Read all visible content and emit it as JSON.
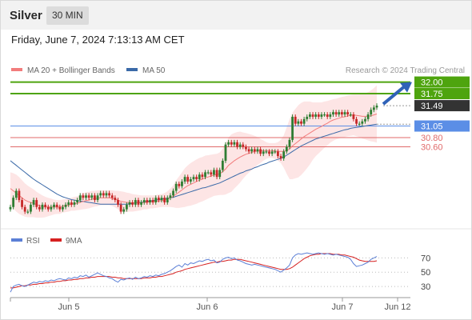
{
  "header": {
    "instrument": "Silver",
    "timeframe": "30 MIN",
    "datetime": "Friday, June 7, 2024 7:13:13 AM CET"
  },
  "colors": {
    "ma20": "#f27c7c",
    "bollinger_fill": "#fde0e0",
    "ma50": "#3b6aa8",
    "resistance": "#4ea40e",
    "pivot": "#5b8ee6",
    "support": "#e06a6a",
    "arrow": "#2f62b8",
    "last_price_bg": "#333333",
    "candle_up": "#2e7d32",
    "candle_down": "#c62828",
    "rsi": "#5b7fd6",
    "rsi_ma": "#d62020"
  },
  "chart_data": [
    {
      "type": "candlestick",
      "legend": [
        {
          "name": "MA 20 + Bollinger Bands",
          "color": "#f27c7c"
        },
        {
          "name": "MA 50",
          "color": "#3b6aa8"
        }
      ],
      "watermark": "Research © 2024 Trading Central",
      "ylim": [
        28.95,
        32.2
      ],
      "x_ticks": [
        "Jun 5",
        "Jun 6",
        "Jun 7",
        "Jun 12"
      ],
      "levels": [
        {
          "label": "32.00",
          "value": 32.0,
          "kind": "resistance"
        },
        {
          "label": "31.75",
          "value": 31.75,
          "kind": "resistance"
        },
        {
          "label": "31.49",
          "value": 31.49,
          "kind": "last"
        },
        {
          "label": "31.05",
          "value": 31.05,
          "kind": "pivot"
        },
        {
          "label": "30.80",
          "value": 30.8,
          "kind": "support"
        },
        {
          "label": "30.60",
          "value": 30.6,
          "kind": "support"
        }
      ],
      "close": [
        29.3,
        29.5,
        29.65,
        29.45,
        29.3,
        29.2,
        29.2,
        29.35,
        29.45,
        29.3,
        29.25,
        29.35,
        29.3,
        29.25,
        29.3,
        29.35,
        29.3,
        29.25,
        29.3,
        29.35,
        29.4,
        29.35,
        29.4,
        29.45,
        29.55,
        29.5,
        29.55,
        29.5,
        29.55,
        29.45,
        29.55,
        29.6,
        29.55,
        29.6,
        29.55,
        29.5,
        29.45,
        29.35,
        29.2,
        29.25,
        29.35,
        29.4,
        29.35,
        29.45,
        29.35,
        29.4,
        29.45,
        29.4,
        29.45,
        29.4,
        29.5,
        29.45,
        29.5,
        29.4,
        29.5,
        29.55,
        29.65,
        29.8,
        29.75,
        29.85,
        29.95,
        29.85,
        29.9,
        29.95,
        29.9,
        30.0,
        29.95,
        30.05,
        30.05,
        30.0,
        30.1,
        29.95,
        30.1,
        30.3,
        30.65,
        30.7,
        30.65,
        30.7,
        30.6,
        30.65,
        30.6,
        30.55,
        30.5,
        30.55,
        30.5,
        30.55,
        30.45,
        30.5,
        30.5,
        30.45,
        30.5,
        30.5,
        30.4,
        30.35,
        30.5,
        30.6,
        30.75,
        31.25,
        31.1,
        31.15,
        31.1,
        31.2,
        31.25,
        31.3,
        31.25,
        31.3,
        31.25,
        31.3,
        31.3,
        31.25,
        31.3,
        31.35,
        31.3,
        31.35,
        31.3,
        31.35,
        31.3,
        31.3,
        31.2,
        31.1,
        31.1,
        31.15,
        31.2,
        31.3,
        31.4,
        31.45,
        31.49
      ],
      "ma20": [
        29.7,
        29.65,
        29.6,
        29.55,
        29.5,
        29.45,
        29.42,
        29.4,
        29.38,
        29.35,
        29.33,
        29.31,
        29.3,
        29.3,
        29.3,
        29.3,
        29.3,
        29.3,
        29.32,
        29.33,
        29.34,
        29.36,
        29.37,
        29.38,
        29.4,
        29.42,
        29.44,
        29.45,
        29.47,
        29.48,
        29.49,
        29.5,
        29.5,
        29.5,
        29.5,
        29.49,
        29.47,
        29.45,
        29.42,
        29.41,
        29.4,
        29.4,
        29.39,
        29.39,
        29.39,
        29.39,
        29.4,
        29.4,
        29.41,
        29.41,
        29.42,
        29.43,
        29.44,
        29.45,
        29.47,
        29.5,
        29.53,
        29.58,
        29.62,
        29.67,
        29.72,
        29.76,
        29.79,
        29.82,
        29.85,
        29.88,
        29.9,
        29.93,
        29.95,
        29.97,
        29.99,
        30.0,
        30.02,
        30.06,
        30.12,
        30.2,
        30.25,
        30.3,
        30.34,
        30.38,
        30.41,
        30.44,
        30.46,
        30.48,
        30.5,
        30.51,
        30.51,
        30.52,
        30.52,
        30.52,
        30.52,
        30.51,
        30.5,
        30.5,
        30.5,
        30.52,
        30.55,
        30.62,
        30.67,
        30.72,
        30.77,
        30.82,
        30.86,
        30.9,
        30.94,
        30.98,
        31.01,
        31.04,
        31.08,
        31.11,
        31.15,
        31.18,
        31.2,
        31.22,
        31.24,
        31.25,
        31.27,
        31.28,
        31.29,
        31.28,
        31.27,
        31.26,
        31.26,
        31.26,
        31.27,
        31.29,
        31.31
      ],
      "ma50": [
        30.3,
        30.25,
        30.2,
        30.15,
        30.1,
        30.05,
        30.0,
        29.95,
        29.9,
        29.86,
        29.82,
        29.78,
        29.74,
        29.7,
        29.66,
        29.62,
        29.58,
        29.55,
        29.52,
        29.5,
        29.48,
        29.46,
        29.45,
        29.44,
        29.43,
        29.42,
        29.41,
        29.4,
        29.39,
        29.38,
        29.37,
        29.36,
        29.36,
        29.36,
        29.36,
        29.36,
        29.36,
        29.36,
        29.36,
        29.36,
        29.36,
        29.37,
        29.38,
        29.39,
        29.4,
        29.4,
        29.41,
        29.42,
        29.43,
        29.44,
        29.45,
        29.46,
        29.47,
        29.48,
        29.49,
        29.5,
        29.51,
        29.53,
        29.55,
        29.57,
        29.59,
        29.61,
        29.63,
        29.65,
        29.67,
        29.69,
        29.71,
        29.72,
        29.74,
        29.76,
        29.78,
        29.8,
        29.82,
        29.85,
        29.88,
        29.91,
        29.94,
        29.97,
        30.0,
        30.03,
        30.05,
        30.08,
        30.1,
        30.12,
        30.15,
        30.17,
        30.2,
        30.22,
        30.24,
        30.27,
        30.29,
        30.31,
        30.33,
        30.35,
        30.38,
        30.42,
        30.46,
        30.5,
        30.54,
        30.58,
        30.62,
        30.65,
        30.68,
        30.71,
        30.74,
        30.77,
        30.79,
        30.81,
        30.83,
        30.85,
        30.87,
        30.89,
        30.91,
        30.93,
        30.95,
        30.97,
        30.98,
        31.0,
        31.01,
        31.02,
        31.03,
        31.04,
        31.05,
        31.06,
        31.07,
        31.08,
        31.09
      ],
      "bb_width": [
        0.35,
        0.38,
        0.4,
        0.4,
        0.38,
        0.36,
        0.34,
        0.32,
        0.3,
        0.28,
        0.26,
        0.24,
        0.22,
        0.2,
        0.18,
        0.16,
        0.15,
        0.15,
        0.14,
        0.14,
        0.14,
        0.14,
        0.15,
        0.15,
        0.16,
        0.17,
        0.18,
        0.18,
        0.18,
        0.17,
        0.17,
        0.16,
        0.16,
        0.16,
        0.16,
        0.17,
        0.18,
        0.2,
        0.22,
        0.22,
        0.21,
        0.2,
        0.19,
        0.18,
        0.17,
        0.16,
        0.15,
        0.15,
        0.14,
        0.14,
        0.14,
        0.14,
        0.14,
        0.15,
        0.17,
        0.2,
        0.24,
        0.3,
        0.34,
        0.38,
        0.42,
        0.44,
        0.46,
        0.47,
        0.48,
        0.48,
        0.48,
        0.48,
        0.47,
        0.46,
        0.45,
        0.45,
        0.46,
        0.5,
        0.55,
        0.6,
        0.62,
        0.6,
        0.58,
        0.55,
        0.5,
        0.46,
        0.42,
        0.38,
        0.34,
        0.3,
        0.26,
        0.22,
        0.18,
        0.16,
        0.16,
        0.17,
        0.2,
        0.25,
        0.35,
        0.5,
        0.65,
        0.72,
        0.75,
        0.78,
        0.78,
        0.76,
        0.72,
        0.68,
        0.62,
        0.58,
        0.55,
        0.52,
        0.5,
        0.48,
        0.46,
        0.45,
        0.44,
        0.44,
        0.44,
        0.44,
        0.44,
        0.44,
        0.44,
        0.45,
        0.46,
        0.48,
        0.5,
        0.52,
        0.55,
        0.58,
        0.62
      ]
    },
    {
      "type": "line",
      "legend": [
        {
          "name": "RSI",
          "color": "#5b7fd6"
        },
        {
          "name": "9MA",
          "color": "#d62020"
        }
      ],
      "ylim": [
        20,
        85
      ],
      "y_ticks": [
        70,
        50,
        30
      ],
      "series": [
        {
          "name": "RSI",
          "values": [
            22,
            30,
            32,
            33,
            31,
            30,
            32,
            34,
            36,
            35,
            37,
            36,
            38,
            37,
            39,
            38,
            40,
            41,
            40,
            39,
            42,
            41,
            43,
            42,
            45,
            44,
            46,
            43,
            45,
            47,
            49,
            47,
            45,
            44,
            42,
            41,
            38,
            36,
            40,
            39,
            41,
            42,
            40,
            43,
            41,
            42,
            44,
            43,
            45,
            44,
            46,
            45,
            47,
            48,
            50,
            52,
            55,
            58,
            60,
            57,
            62,
            60,
            63,
            62,
            64,
            66,
            65,
            67,
            68,
            66,
            67,
            63,
            64,
            68,
            70,
            71,
            69,
            70,
            67,
            66,
            64,
            62,
            61,
            60,
            61,
            60,
            59,
            58,
            57,
            56,
            55,
            54,
            52,
            50,
            53,
            56,
            60,
            70,
            74,
            76,
            75,
            76,
            77,
            76,
            75,
            76,
            77,
            76,
            75,
            76,
            75,
            74,
            75,
            74,
            73,
            72,
            71,
            68,
            62,
            58,
            59,
            60,
            62,
            64,
            68,
            70,
            72
          ]
        },
        {
          "name": "9MA",
          "values": [
            28,
            28,
            29,
            30,
            31,
            31,
            32,
            32,
            33,
            33,
            34,
            34,
            35,
            35,
            36,
            36,
            37,
            37,
            38,
            38,
            39,
            39,
            40,
            40,
            41,
            41,
            42,
            42,
            43,
            43,
            44,
            44,
            44,
            44,
            44,
            43,
            43,
            42,
            42,
            41,
            41,
            41,
            41,
            41,
            41,
            41,
            42,
            42,
            42,
            43,
            43,
            44,
            44,
            45,
            46,
            47,
            48,
            50,
            51,
            52,
            54,
            55,
            56,
            57,
            58,
            59,
            60,
            61,
            62,
            63,
            64,
            64,
            65,
            65,
            66,
            67,
            67,
            68,
            68,
            68,
            67,
            66,
            65,
            64,
            63,
            62,
            61,
            60,
            59,
            58,
            57,
            56,
            55,
            54,
            54,
            54,
            55,
            57,
            60,
            63,
            66,
            69,
            71,
            73,
            74,
            75,
            75,
            76,
            76,
            76,
            76,
            75,
            75,
            75,
            74,
            74,
            73,
            72,
            71,
            69,
            67,
            66,
            65,
            65,
            65,
            65,
            66
          ]
        }
      ]
    }
  ]
}
